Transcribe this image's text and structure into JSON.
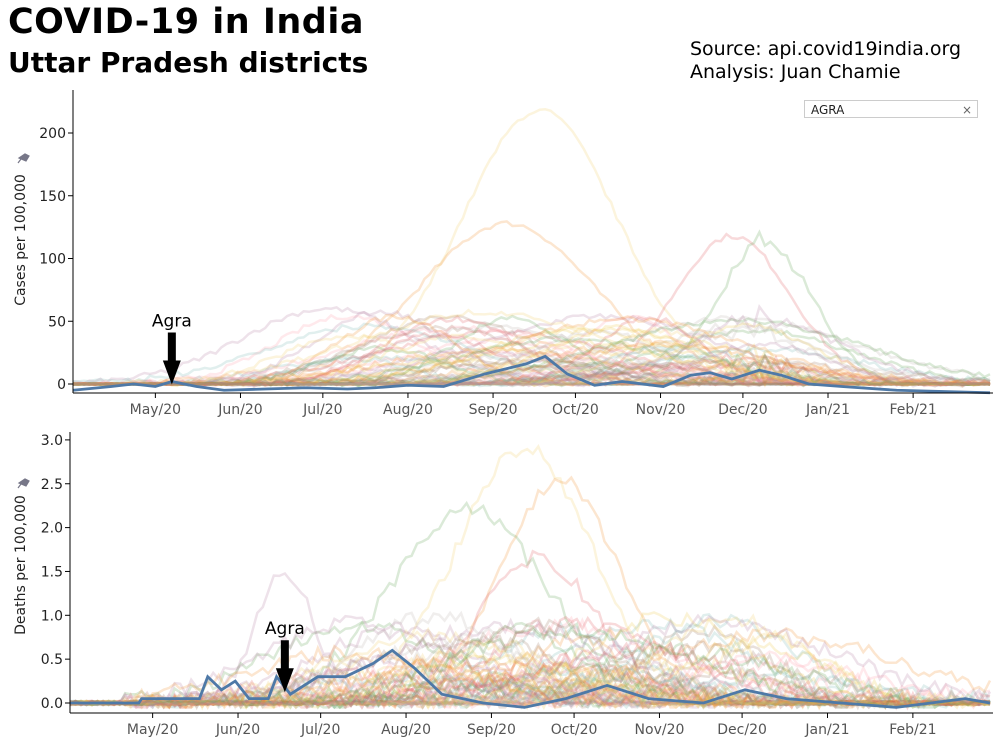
{
  "header": {
    "title": "COVID-19 in India",
    "subtitle": "Uttar Pradesh districts",
    "source": "Source: api.covid19india.org",
    "analysis": "Analysis:  Juan Chamie"
  },
  "search": {
    "value": "AGRA",
    "clear": "×"
  },
  "colors": {
    "highlight": "#4e79a7",
    "background_lines": [
      "#f1ce63",
      "#f28e2b",
      "#e15759",
      "#59a14f",
      "#b07aa1",
      "#ff9da7",
      "#9c755f",
      "#bab0ac",
      "#edc948",
      "#76b7b2"
    ]
  },
  "chart_data": [
    {
      "type": "line",
      "ylabel": "Cases per 100,000",
      "ylim": [
        -8,
        230
      ],
      "yticks": [
        0,
        50,
        100,
        150,
        200
      ],
      "ytick_labels": [
        "0",
        "50",
        "100",
        "150",
        "200"
      ],
      "x_start": "2020-04-01",
      "x_end": "2021-03-01",
      "xtick_days": [
        30,
        61,
        91,
        122,
        153,
        183,
        214,
        244,
        275,
        306
      ],
      "xtick_labels": [
        "May/20",
        "Jun/20",
        "Jul/20",
        "Aug/20",
        "Sep/20",
        "Oct/20",
        "Nov/20",
        "Dec/20",
        "Jan/21",
        "Feb/21"
      ],
      "highlight": {
        "name": "Agra",
        "annotation": "Agra",
        "annotation_day": 36,
        "points": [
          [
            0,
            -5
          ],
          [
            14,
            -2
          ],
          [
            22,
            0
          ],
          [
            30,
            -2
          ],
          [
            36,
            2
          ],
          [
            45,
            -2
          ],
          [
            55,
            -5
          ],
          [
            70,
            -4
          ],
          [
            85,
            -3
          ],
          [
            100,
            -4
          ],
          [
            110,
            -3
          ],
          [
            122,
            -1
          ],
          [
            135,
            -2
          ],
          [
            150,
            8
          ],
          [
            165,
            16
          ],
          [
            172,
            22
          ],
          [
            180,
            8
          ],
          [
            190,
            -1
          ],
          [
            200,
            2
          ],
          [
            215,
            -2
          ],
          [
            225,
            7
          ],
          [
            232,
            9
          ],
          [
            240,
            4
          ],
          [
            250,
            11
          ],
          [
            258,
            7
          ],
          [
            268,
            0
          ],
          [
            280,
            -2
          ],
          [
            300,
            -5
          ],
          [
            334,
            -7
          ]
        ]
      },
      "peak_series": [
        {
          "peak_day": 170,
          "peak": 218,
          "width": 40
        },
        {
          "peak_day": 158,
          "peak": 128,
          "width": 45
        },
        {
          "peak_day": 240,
          "peak": 118,
          "width": 30
        },
        {
          "peak_day": 252,
          "peak": 106,
          "width": 25
        },
        {
          "peak_day": 93,
          "peak": 60,
          "width": 45
        }
      ]
    },
    {
      "type": "line",
      "ylabel": "Deaths per 100,000",
      "ylim": [
        -0.12,
        3.1
      ],
      "yticks": [
        0,
        0.5,
        1,
        1.5,
        2,
        2.5,
        3
      ],
      "ytick_labels": [
        "0.0",
        "0.5",
        "1.0",
        "1.5",
        "2.0",
        "2.5",
        "3.0"
      ],
      "x_start": "2020-04-01",
      "x_end": "2021-03-01",
      "xtick_days": [
        30,
        61,
        91,
        122,
        153,
        183,
        214,
        244,
        275,
        306
      ],
      "xtick_labels": [
        "May/20",
        "Jun/20",
        "Jul/20",
        "Aug/20",
        "Sep/20",
        "Oct/20",
        "Nov/20",
        "Dec/20",
        "Jan/21",
        "Feb/21"
      ],
      "highlight": {
        "name": "Agra",
        "annotation": "Agra",
        "annotation_day": 78,
        "points": [
          [
            0,
            0
          ],
          [
            25,
            0
          ],
          [
            26,
            0.05
          ],
          [
            47,
            0.05
          ],
          [
            50,
            0.3
          ],
          [
            55,
            0.15
          ],
          [
            60,
            0.25
          ],
          [
            65,
            0.05
          ],
          [
            72,
            0.05
          ],
          [
            75,
            0.3
          ],
          [
            80,
            0.1
          ],
          [
            90,
            0.3
          ],
          [
            100,
            0.3
          ],
          [
            110,
            0.45
          ],
          [
            117,
            0.6
          ],
          [
            125,
            0.4
          ],
          [
            135,
            0.1
          ],
          [
            150,
            0
          ],
          [
            165,
            -0.05
          ],
          [
            180,
            0.05
          ],
          [
            195,
            0.2
          ],
          [
            210,
            0.05
          ],
          [
            230,
            0
          ],
          [
            245,
            0.15
          ],
          [
            260,
            0.05
          ],
          [
            280,
            0
          ],
          [
            300,
            -0.05
          ],
          [
            325,
            0.05
          ],
          [
            334,
            0
          ]
        ]
      },
      "peak_series": [
        {
          "peak_day": 165,
          "peak": 2.9,
          "width": 35
        },
        {
          "peak_day": 178,
          "peak": 2.55,
          "width": 30
        },
        {
          "peak_day": 170,
          "peak": 1.65,
          "width": 30
        },
        {
          "peak_day": 145,
          "peak": 2.2,
          "width": 40
        },
        {
          "peak_day": 78,
          "peak": 1.5,
          "width": 15
        }
      ]
    }
  ]
}
